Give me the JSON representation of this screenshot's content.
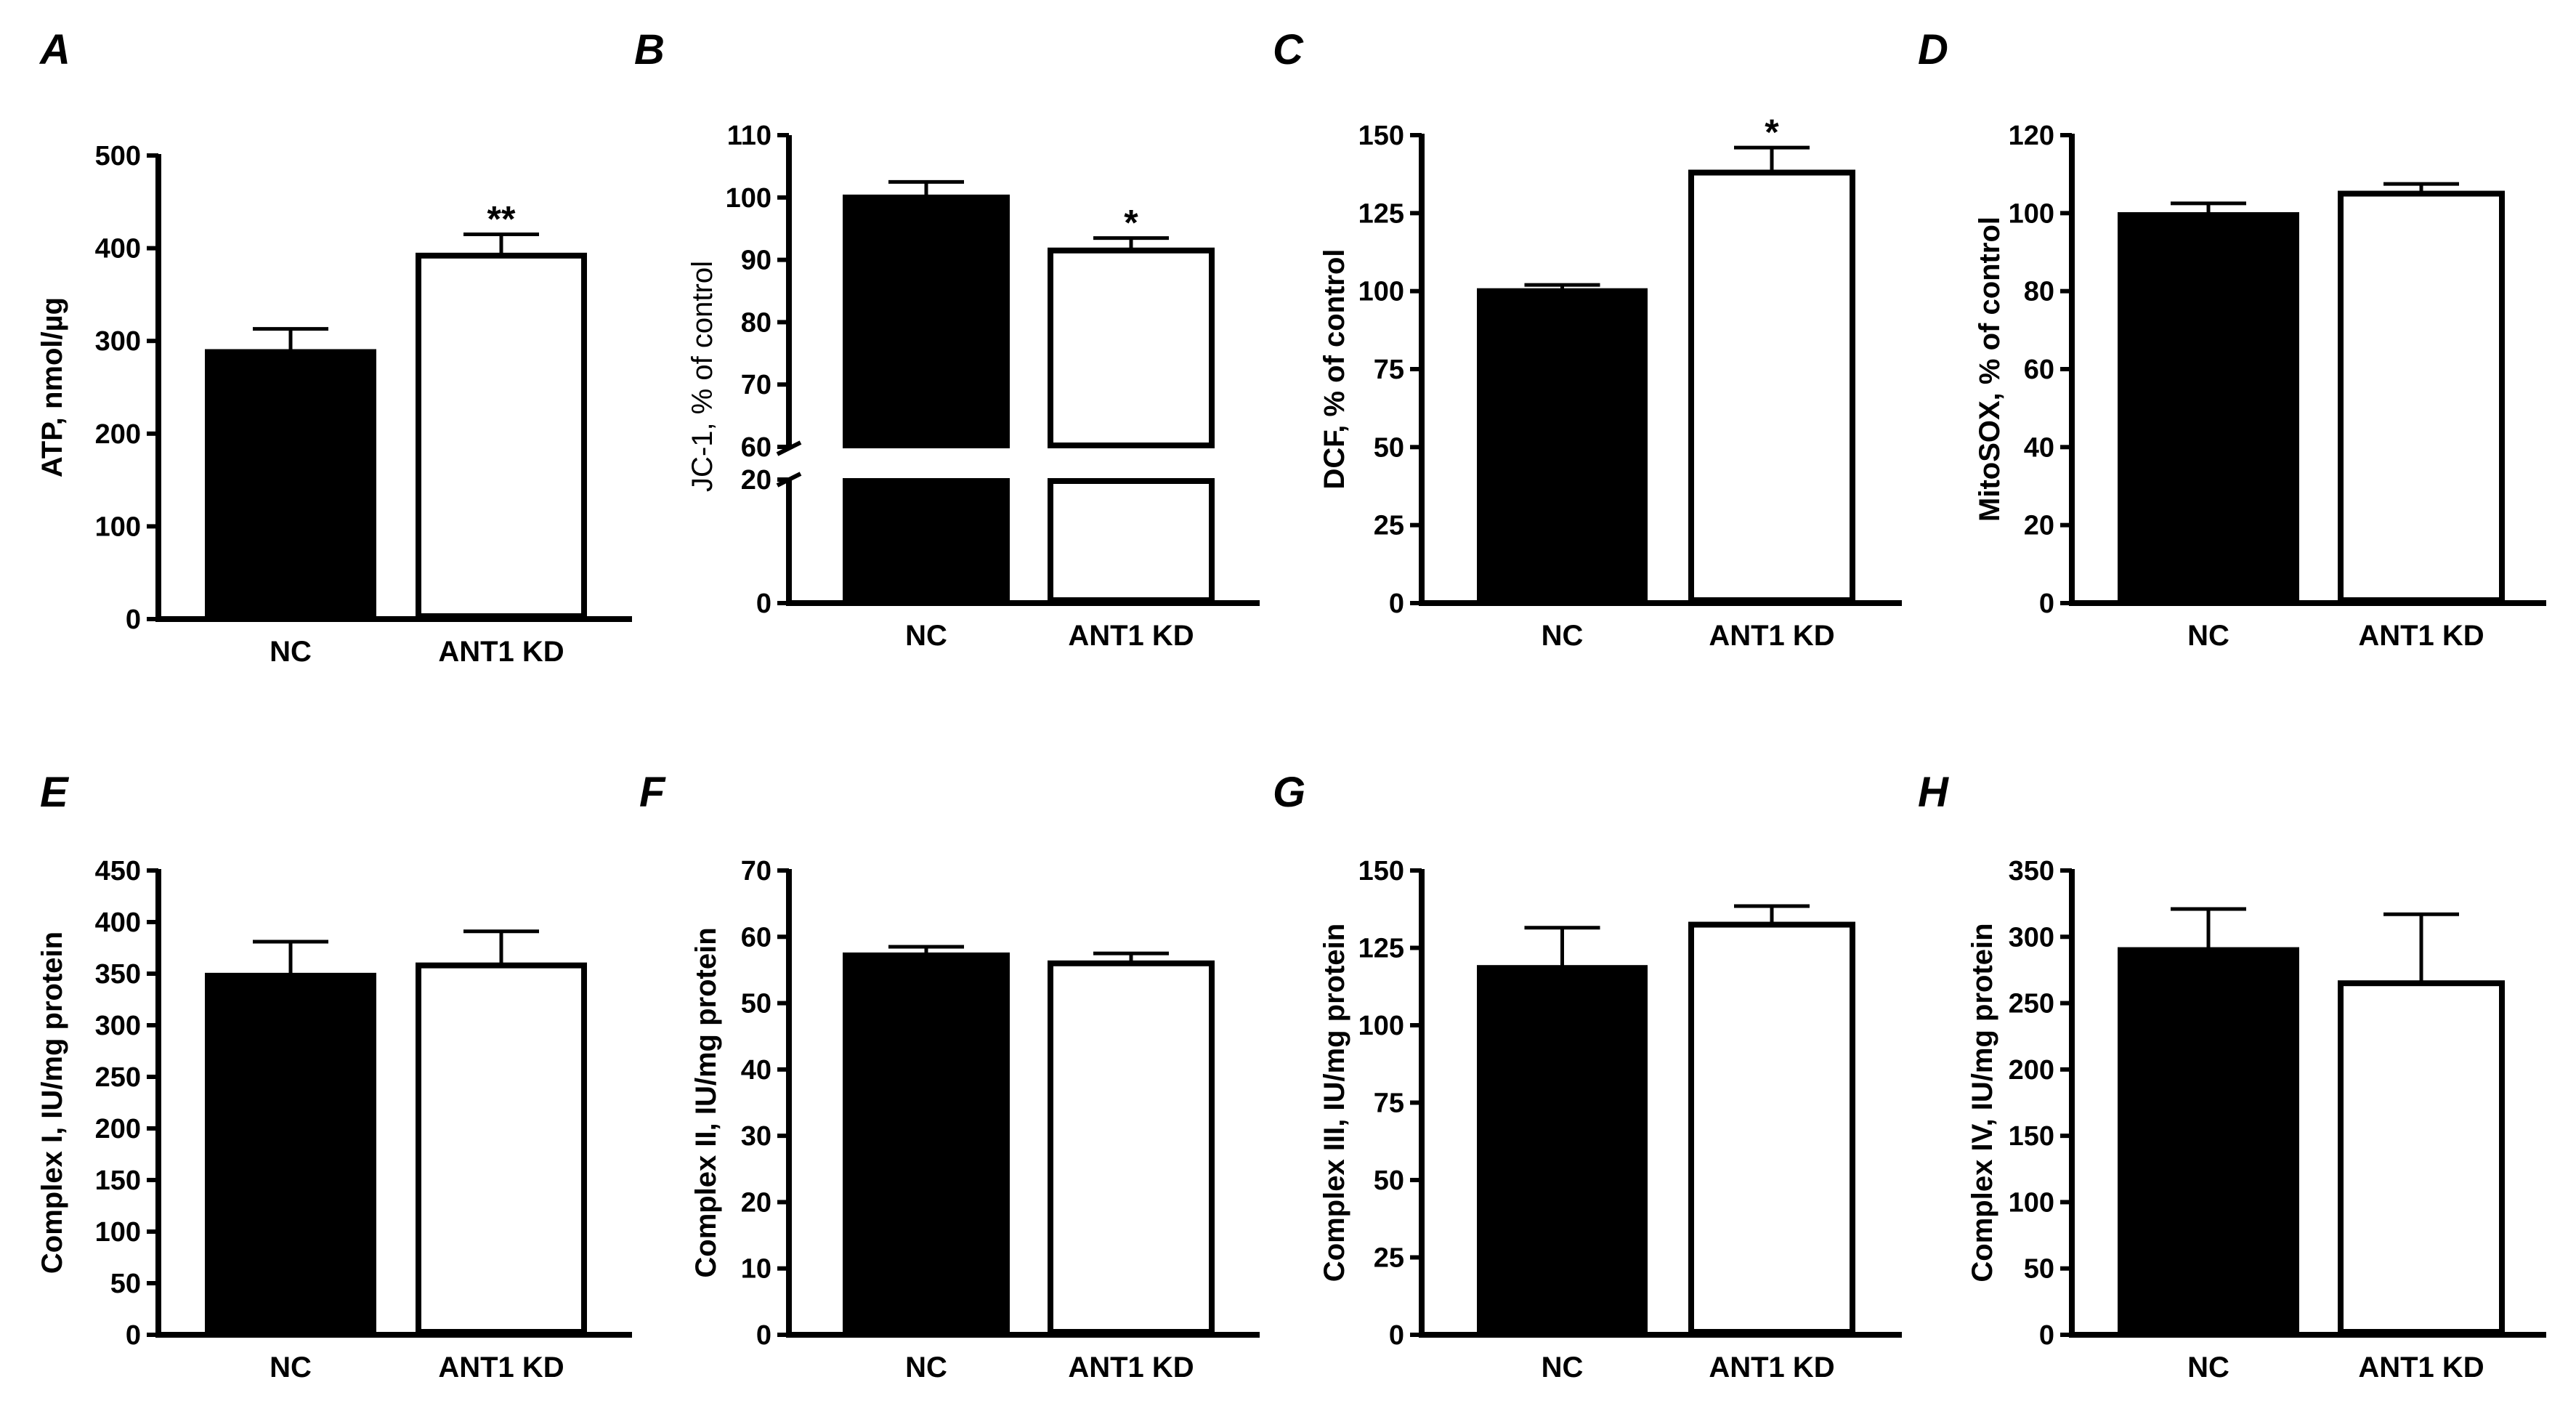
{
  "figure": {
    "title": ""
  },
  "chart_data": [
    {
      "panel": "A",
      "type": "bar",
      "title": "",
      "xlabel": "",
      "ylabel": "ATP, nmol/µg",
      "categories": [
        "NC",
        "ANT1 KD"
      ],
      "series": [
        {
          "name": "mean",
          "values": [
            288,
            392
          ],
          "errors": [
            25,
            23
          ],
          "fills": [
            "#000000",
            "#ffffff"
          ]
        }
      ],
      "significance": [
        "",
        "**"
      ],
      "ylim": [
        0,
        500
      ],
      "yticks": [
        "0",
        "100",
        "200",
        "300",
        "400",
        "500"
      ],
      "grid": false
    },
    {
      "panel": "B",
      "type": "bar",
      "title": "",
      "xlabel": "",
      "ylabel": "JC-1, % of control",
      "categories": [
        "NC",
        "ANT1 KD"
      ],
      "series": [
        {
          "name": "mean",
          "values": [
            100,
            91.5
          ],
          "errors": [
            2.5,
            2
          ],
          "fills": [
            "#000000",
            "#ffffff"
          ]
        }
      ],
      "significance": [
        "",
        "*"
      ],
      "ylim": [
        0,
        110
      ],
      "axis_break": [
        20,
        60
      ],
      "yticks": [
        "0",
        "20",
        "60",
        "70",
        "80",
        "90",
        "100",
        "110"
      ],
      "grid": false
    },
    {
      "panel": "C",
      "type": "bar",
      "title": "",
      "xlabel": "",
      "ylabel": "DCF, % of control",
      "categories": [
        "NC",
        "ANT1 KD"
      ],
      "series": [
        {
          "name": "mean",
          "values": [
            100,
            138
          ],
          "errors": [
            2,
            8
          ],
          "fills": [
            "#000000",
            "#ffffff"
          ]
        }
      ],
      "significance": [
        "",
        "*"
      ],
      "ylim": [
        0,
        150
      ],
      "yticks": [
        "0",
        "25",
        "50",
        "75",
        "100",
        "125",
        "150"
      ],
      "grid": false
    },
    {
      "panel": "D",
      "type": "bar",
      "title": "",
      "xlabel": "",
      "ylabel": "MitoSOX, % of control",
      "categories": [
        "NC",
        "ANT1 KD"
      ],
      "series": [
        {
          "name": "mean",
          "values": [
            99.5,
            105
          ],
          "errors": [
            3,
            2.5
          ],
          "fills": [
            "#000000",
            "#ffffff"
          ]
        }
      ],
      "significance": [
        "",
        ""
      ],
      "ylim": [
        0,
        120
      ],
      "yticks": [
        "0",
        "20",
        "40",
        "60",
        "80",
        "100",
        "120"
      ],
      "grid": false
    },
    {
      "panel": "E",
      "type": "bar",
      "title": "",
      "xlabel": "",
      "ylabel": "Complex I, IU/mg protein",
      "categories": [
        "NC",
        "ANT1 KD"
      ],
      "series": [
        {
          "name": "mean",
          "values": [
            348,
            358
          ],
          "errors": [
            33,
            33
          ],
          "fills": [
            "#000000",
            "#ffffff"
          ]
        }
      ],
      "significance": [
        "",
        ""
      ],
      "ylim": [
        0,
        450
      ],
      "yticks": [
        "0",
        "50",
        "100",
        "150",
        "200",
        "250",
        "300",
        "350",
        "400",
        "450"
      ],
      "grid": false
    },
    {
      "panel": "F",
      "type": "bar",
      "title": "",
      "xlabel": "",
      "ylabel": "Complex  II, IU/mg protein",
      "categories": [
        "NC",
        "ANT1 KD"
      ],
      "series": [
        {
          "name": "mean",
          "values": [
            57.2,
            56
          ],
          "errors": [
            1.3,
            1.5
          ],
          "fills": [
            "#000000",
            "#ffffff"
          ]
        }
      ],
      "significance": [
        "",
        ""
      ],
      "ylim": [
        0,
        70
      ],
      "yticks": [
        "0",
        "10",
        "20",
        "30",
        "40",
        "50",
        "60",
        "70"
      ],
      "grid": false
    },
    {
      "panel": "G",
      "type": "bar",
      "title": "",
      "xlabel": "",
      "ylabel": "Complex  III, IU/mg protein",
      "categories": [
        "NC",
        "ANT1 KD"
      ],
      "series": [
        {
          "name": "mean",
          "values": [
            118.5,
            132.5
          ],
          "errors": [
            13,
            6
          ],
          "fills": [
            "#000000",
            "#ffffff"
          ]
        }
      ],
      "significance": [
        "",
        ""
      ],
      "ylim": [
        0,
        150
      ],
      "yticks": [
        "0",
        "25",
        "50",
        "75",
        "100",
        "125",
        "150"
      ],
      "grid": false
    },
    {
      "panel": "H",
      "type": "bar",
      "title": "",
      "xlabel": "",
      "ylabel": "Complex IV, IU/mg protein",
      "categories": [
        "NC",
        "ANT1 KD"
      ],
      "series": [
        {
          "name": "mean",
          "values": [
            290,
            265
          ],
          "errors": [
            31,
            52
          ],
          "fills": [
            "#000000",
            "#ffffff"
          ]
        }
      ],
      "significance": [
        "",
        ""
      ],
      "ylim": [
        0,
        350
      ],
      "yticks": [
        "0",
        "50",
        "100",
        "150",
        "200",
        "250",
        "300",
        "350"
      ],
      "grid": false
    }
  ]
}
